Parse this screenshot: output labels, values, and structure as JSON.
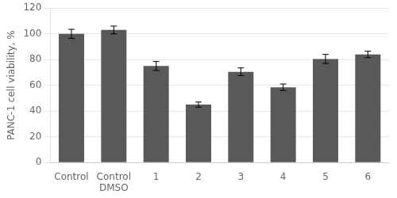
{
  "chart_data": {
    "type": "bar",
    "categories": [
      "Control",
      "Control\nDMSO",
      "1",
      "2",
      "3",
      "4",
      "5",
      "6"
    ],
    "values": [
      100.0,
      103.0,
      75.0,
      45.0,
      70.5,
      58.5,
      80.5,
      84.0
    ],
    "errors": [
      3.5,
      3.0,
      3.5,
      2.0,
      3.0,
      2.5,
      3.5,
      2.5
    ],
    "color": "#595959",
    "ylabel": "PANC-1 cell viability, %",
    "ylim": [
      0,
      120
    ],
    "yticks": [
      0,
      20,
      40,
      60,
      80,
      100,
      120
    ],
    "grid": true
  }
}
